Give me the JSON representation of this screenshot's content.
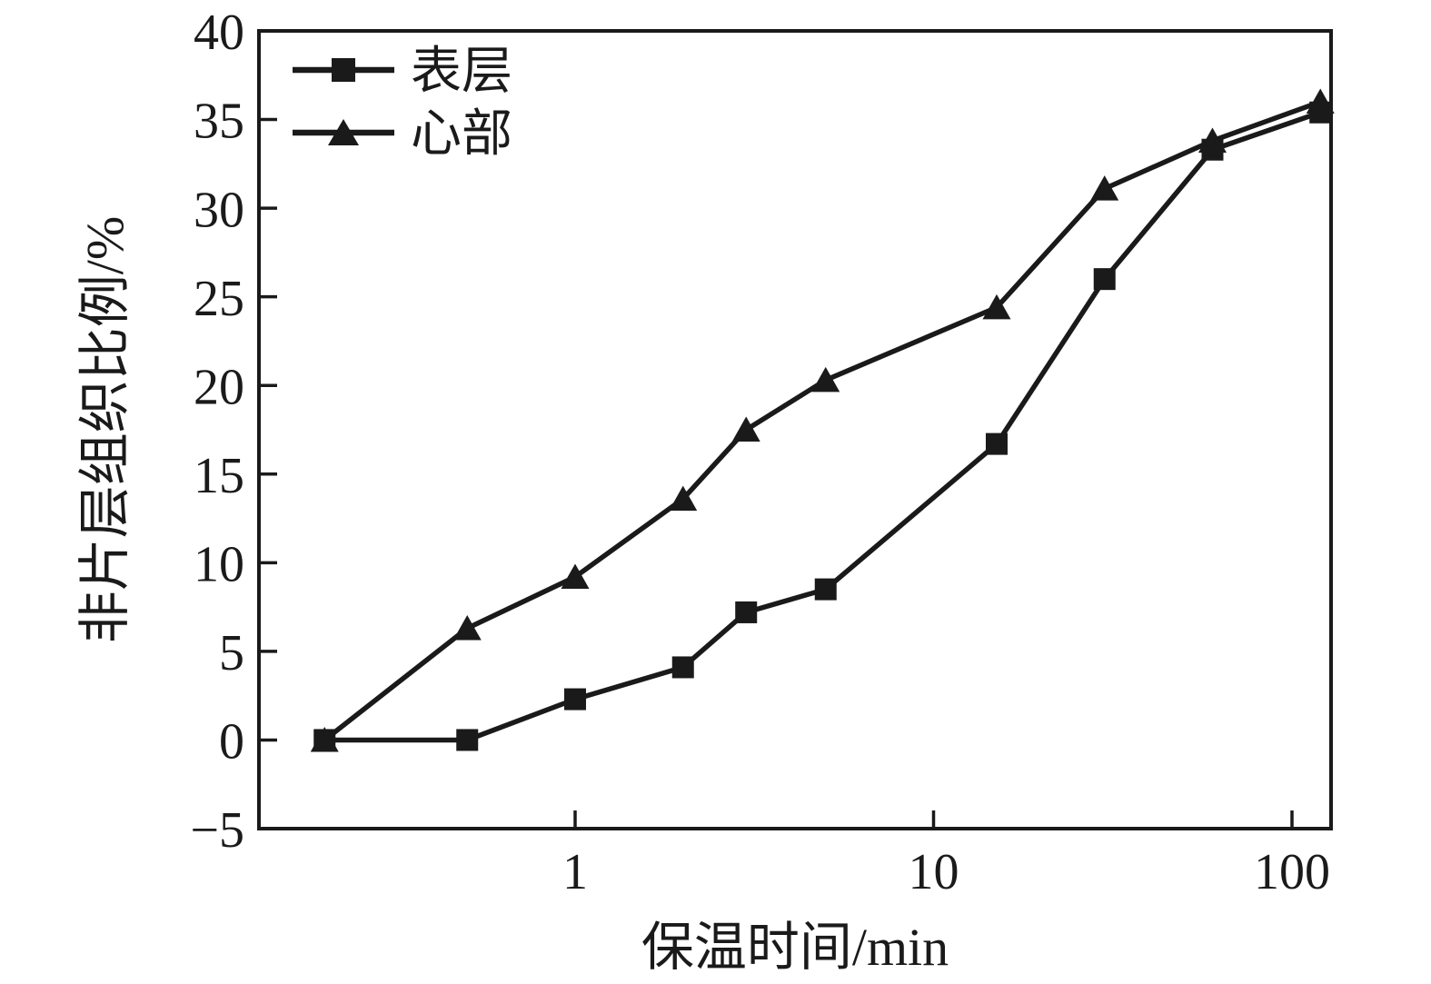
{
  "chart_data": {
    "type": "line",
    "title": "",
    "xlabel": "保温时间/min",
    "ylabel": "非片层组织比例/%",
    "x_scale": "log",
    "x_ticks": [
      1,
      10,
      100
    ],
    "x_range": [
      0.13,
      129
    ],
    "y_ticks": [
      40,
      35,
      30,
      25,
      20,
      15,
      10,
      5,
      0,
      -5
    ],
    "y_range": [
      -5,
      40
    ],
    "grid": false,
    "legend_position": "top-left",
    "line_color": "#1a1a1a",
    "x": [
      0.2,
      0.5,
      1,
      2,
      3,
      5,
      15,
      30,
      60,
      120
    ],
    "series": [
      {
        "name": "表层",
        "marker": "square",
        "values": [
          0,
          0,
          2.3,
          4.1,
          7.2,
          8.5,
          16.7,
          26.0,
          33.3,
          35.4
        ]
      },
      {
        "name": "心部",
        "marker": "triangle",
        "values": [
          0,
          6.3,
          9.2,
          13.6,
          17.5,
          20.3,
          24.4,
          31.1,
          33.8,
          36.0
        ]
      }
    ]
  }
}
